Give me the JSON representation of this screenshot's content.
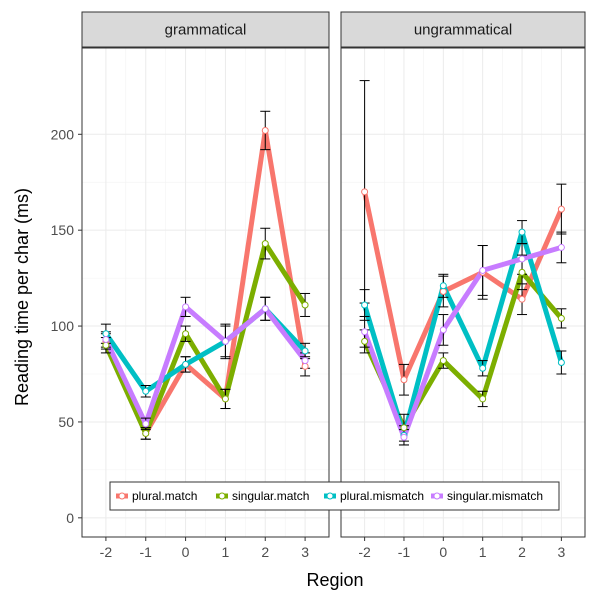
{
  "chart_data": {
    "type": "line",
    "xlabel": "Region",
    "ylabel": "Reading time per char (ms)",
    "x": [
      -2,
      -1,
      0,
      1,
      2,
      3
    ],
    "x_tick_labels": [
      "-2",
      "-1",
      "0",
      "1",
      "2",
      "3"
    ],
    "ylim": [
      -10,
      245
    ],
    "y_ticks": [
      0,
      50,
      100,
      150,
      200
    ],
    "y_tick_labels": [
      "0",
      "50",
      "100",
      "150",
      "200"
    ],
    "grid": true,
    "legend_position": "bottom-inside",
    "legend": [
      "plural.match",
      "singular.match",
      "plural.mismatch",
      "singular.mismatch"
    ],
    "colors": {
      "plural.match": "#F8766D",
      "singular.match": "#7CAE00",
      "plural.mismatch": "#00BFC4",
      "singular.mismatch": "#C77CFF"
    },
    "panels": [
      {
        "label": "grammatical",
        "series": [
          {
            "name": "plural.match",
            "values": [
              92,
              44,
              80,
              62,
              202,
              79
            ],
            "err": [
              4,
              3,
              4,
              5,
              10,
              5
            ]
          },
          {
            "name": "singular.match",
            "values": [
              90,
              44,
              96,
              62,
              143,
              111
            ],
            "err": [
              4,
              3,
              4,
              5,
              8,
              6
            ]
          },
          {
            "name": "plural.mismatch",
            "values": [
              96,
              66,
              80,
              92,
              109,
              87
            ],
            "err": [
              5,
              3,
              4,
              8,
              6,
              4
            ]
          },
          {
            "name": "singular.mismatch",
            "values": [
              93,
              49,
              110,
              92,
              109,
              82
            ],
            "err": [
              4,
              3,
              5,
              9,
              6,
              4
            ]
          }
        ]
      },
      {
        "label": "ungrammatical",
        "series": [
          {
            "name": "plural.match",
            "values": [
              170,
              72,
              118,
              128,
              114,
              161
            ],
            "err": [
              58,
              8,
              8,
              14,
              8,
              13
            ]
          },
          {
            "name": "singular.match",
            "values": [
              92,
              47,
              82,
              62,
              128,
              104
            ],
            "err": [
              6,
              7,
              4,
              4,
              9,
              5
            ]
          },
          {
            "name": "plural.mismatch",
            "values": [
              111,
              43,
              121,
              78,
              149,
              81
            ],
            "err": [
              8,
              5,
              6,
              4,
              6,
              6
            ]
          },
          {
            "name": "singular.mismatch",
            "values": [
              97,
              42,
              98,
              129,
              135,
              141
            ],
            "err": [
              8,
              4,
              8,
              13,
              8,
              8
            ]
          }
        ]
      }
    ]
  }
}
